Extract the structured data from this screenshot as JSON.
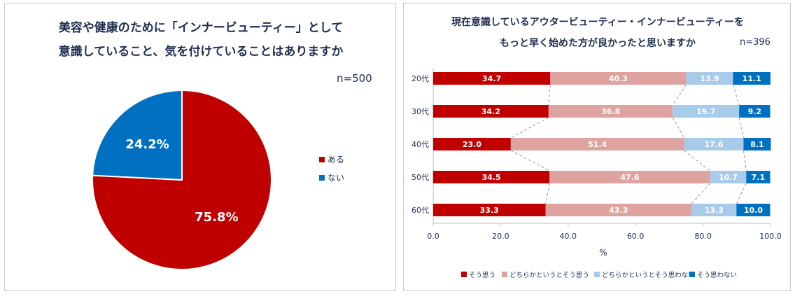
{
  "colors": {
    "red": "#c00000",
    "pink": "#dfa39f",
    "lightblue": "#a8cbea",
    "blue": "#0070c0",
    "axis": "#bfbfbf",
    "text": "#1f2d4f"
  },
  "chart_data": [
    {
      "type": "pie",
      "title_line1": "美容や健康のために「インナービューティー」として",
      "title_line2": "意識していること、気を付けていることはありますか",
      "n_label": "n=500",
      "slices": [
        {
          "name": "ある",
          "value": 75.8,
          "label": "75.8%",
          "color": "#c00000"
        },
        {
          "name": "ない",
          "value": 24.2,
          "label": "24.2%",
          "color": "#0070c0"
        }
      ],
      "legend_position": "right"
    },
    {
      "type": "bar",
      "orientation": "horizontal",
      "stacked": true,
      "title_line1": "現在意識しているアウタービューティー・インナービューティーを",
      "title_line2": "もっと早く始めた方が良かったと思いますか",
      "n_label": "n=396",
      "categories": [
        "20代",
        "30代",
        "40代",
        "50代",
        "60代"
      ],
      "series": [
        {
          "name": "そう思う",
          "color": "#c00000",
          "values": [
            34.7,
            34.2,
            23.0,
            34.5,
            33.3
          ],
          "labels": [
            "34.7",
            "34.2",
            "23.0",
            "34.5",
            "33.3"
          ]
        },
        {
          "name": "どちらかというとそう思う",
          "color": "#dfa39f",
          "values": [
            40.3,
            36.8,
            51.4,
            47.6,
            43.3
          ],
          "labels": [
            "40.3",
            "36.8",
            "51.4",
            "47.6",
            "43.3"
          ]
        },
        {
          "name": "どちらかというとそう思わない",
          "color": "#a8cbea",
          "values": [
            13.9,
            19.7,
            17.6,
            10.7,
            13.3
          ],
          "labels": [
            "13.9",
            "19.7",
            "17.6",
            "10.7",
            "13.3"
          ]
        },
        {
          "name": "そう思わない",
          "color": "#0070c0",
          "values": [
            11.1,
            9.2,
            8.1,
            7.1,
            10.0
          ],
          "labels": [
            "11.1",
            "9.2",
            "8.1",
            "7.1",
            "10.0"
          ]
        }
      ],
      "xlim": [
        0,
        100
      ],
      "xticks": [
        "0.0",
        "20.0",
        "40.0",
        "60.0",
        "80.0",
        "100.0"
      ],
      "xtick_values": [
        0,
        20,
        40,
        60,
        80,
        100
      ],
      "xlabel": "%",
      "legend_position": "bottom"
    }
  ]
}
